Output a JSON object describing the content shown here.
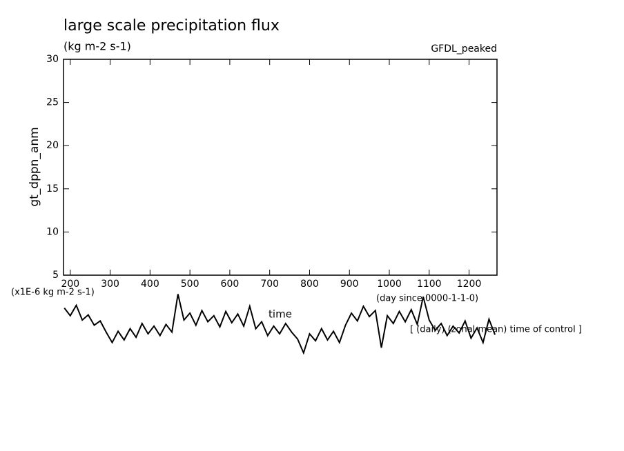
{
  "chart_data": {
    "type": "line",
    "title": "large scale precipitation flux",
    "subtitle": "(kg m-2 s-1)",
    "annotation": "GFDL_peaked",
    "y_label": "gt_dppn_anm",
    "y_unit_label": "(x1E-6 kg m-2 s-1)",
    "x_label": "(day since 0000-1-1-0)",
    "x_title": "time",
    "note": "[ (daily) (zonal mean) time of control ]",
    "x": [
      185,
      200,
      215,
      230,
      245,
      260,
      275,
      290,
      305,
      320,
      335,
      350,
      365,
      380,
      395,
      410,
      425,
      440,
      455,
      470,
      485,
      500,
      515,
      530,
      545,
      560,
      575,
      590,
      605,
      620,
      635,
      650,
      665,
      680,
      695,
      710,
      725,
      740,
      755,
      770,
      785,
      800,
      815,
      830,
      845,
      860,
      875,
      890,
      905,
      920,
      935,
      950,
      965,
      980,
      995,
      1010,
      1025,
      1040,
      1055,
      1070,
      1085,
      1100,
      1115,
      1130,
      1145,
      1160,
      1175,
      1190,
      1205,
      1220,
      1235,
      1250,
      1265
    ],
    "series": [
      {
        "name": "gt_dppn_anm",
        "color": "#000000",
        "values": [
          1.2,
          0.3,
          1.5,
          -0.2,
          0.4,
          -0.8,
          -0.3,
          -1.6,
          -2.8,
          -1.5,
          -2.5,
          -1.2,
          -2.2,
          -0.6,
          -1.8,
          -0.9,
          -2.0,
          -0.7,
          -1.6,
          2.8,
          -0.2,
          0.6,
          -0.8,
          0.9,
          -0.4,
          0.3,
          -1.0,
          0.8,
          -0.5,
          0.5,
          -0.9,
          1.4,
          -1.2,
          -0.4,
          -2.0,
          -0.9,
          -1.8,
          -0.6,
          -1.6,
          -2.4,
          -4.0,
          -1.8,
          -2.6,
          -1.2,
          -2.5,
          -1.5,
          -2.8,
          -0.8,
          0.6,
          -0.3,
          1.4,
          0.2,
          0.9,
          -3.4,
          0.3,
          -0.6,
          0.8,
          -0.4,
          1.0,
          -0.7,
          2.5,
          -0.2,
          -1.4,
          -0.6,
          -2.0,
          -0.9,
          -1.7,
          -0.3,
          -2.3,
          -1.1,
          -2.8,
          -0.1,
          -1.9
        ]
      }
    ],
    "xlim": [
      183,
      1270
    ],
    "xticks": [
      200,
      300,
      400,
      500,
      600,
      700,
      800,
      900,
      1000,
      1100,
      1200
    ],
    "ylim": [
      5,
      30
    ],
    "yticks": [
      5,
      10,
      15,
      20,
      25,
      30
    ]
  }
}
